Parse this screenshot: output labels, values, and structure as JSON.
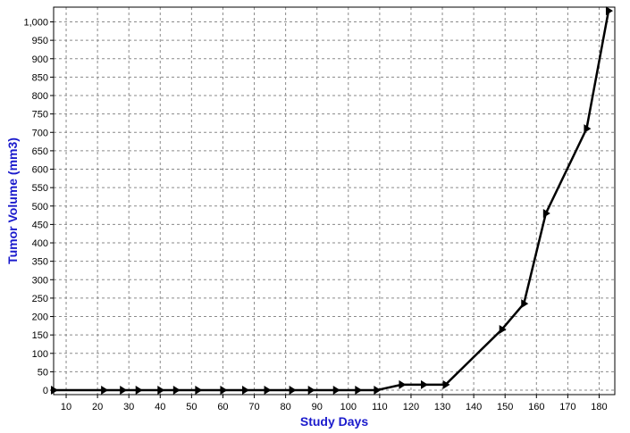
{
  "chart_data": {
    "type": "line",
    "title": "",
    "xlabel": "Study Days",
    "ylabel": "Tumor Volume (mm3)",
    "xlim": [
      6,
      185
    ],
    "ylim": [
      -12,
      1040
    ],
    "x_ticks": [
      10,
      20,
      30,
      40,
      50,
      60,
      70,
      80,
      90,
      100,
      110,
      120,
      130,
      140,
      150,
      160,
      170,
      180
    ],
    "y_ticks": [
      0,
      50,
      100,
      150,
      200,
      250,
      300,
      350,
      400,
      450,
      500,
      550,
      600,
      650,
      700,
      750,
      800,
      850,
      900,
      950,
      1000
    ],
    "y_tick_labels": [
      "0",
      "50",
      "100",
      "150",
      "200",
      "250",
      "300",
      "350",
      "400",
      "450",
      "500",
      "550",
      "600",
      "650",
      "700",
      "750",
      "800",
      "850",
      "900",
      "950",
      "1,000"
    ],
    "grid": true,
    "series": [
      {
        "color": "#000000",
        "marker": "triangle-right",
        "x": [
          6,
          22,
          28,
          33,
          40,
          45,
          52,
          60,
          67,
          74,
          82,
          88,
          96,
          103,
          109,
          117,
          124,
          131,
          149,
          156,
          163,
          176,
          183
        ],
        "y": [
          0,
          0,
          0,
          0,
          0,
          0,
          0,
          0,
          0,
          0,
          0,
          0,
          0,
          0,
          0,
          15,
          15,
          15,
          165,
          235,
          480,
          710,
          1030
        ]
      }
    ]
  }
}
